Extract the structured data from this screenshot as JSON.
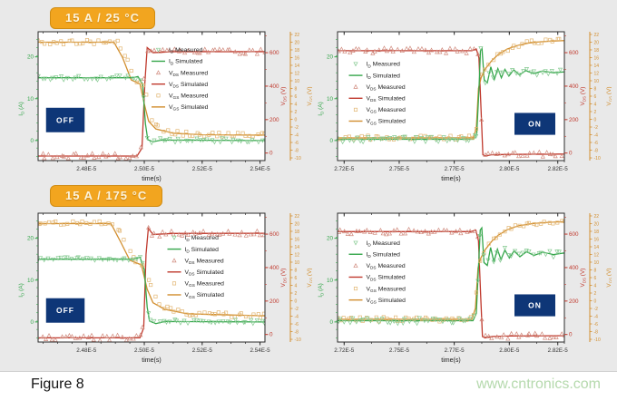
{
  "page": {
    "background": "#e9e9e9",
    "footer": {
      "label": "Figure 8",
      "watermark": "www.cntronics.com"
    }
  },
  "badges": [
    {
      "label": "15 A / 25 °C"
    },
    {
      "label": "15 A / 175 °C"
    }
  ],
  "colors": {
    "id_sim": "#35a64b",
    "id_meas": "#84c990",
    "vds_sim": "#c03a2e",
    "vds_meas": "#d08a7d",
    "vgs_sim": "#d28e2e",
    "vgs_meas": "#e2b571",
    "frame": "#2a2a2a",
    "tick_text": "#333333",
    "plot_bg": "#ffffff",
    "state_box_bg": "#0e3677",
    "state_box_text": "#ffffff"
  },
  "legend_items": [
    {
      "marker": "triangle-down",
      "color_key": "id_meas",
      "sym": "I",
      "sub": "D",
      "kind": "Measured"
    },
    {
      "marker": "line",
      "color_key": "id_sim",
      "sym": "I",
      "sub": "D",
      "kind": "Simulated"
    },
    {
      "marker": "triangle-up",
      "color_key": "vds_meas",
      "sym": "V",
      "sub": "DS",
      "kind": "Measured"
    },
    {
      "marker": "line",
      "color_key": "vds_sim",
      "sym": "V",
      "sub": "DS",
      "kind": "Simulated"
    },
    {
      "marker": "square",
      "color_key": "vgs_meas",
      "sym": "V",
      "sub": "GS",
      "kind": "Measured"
    },
    {
      "marker": "line",
      "color_key": "vgs_sim",
      "sym": "V",
      "sub": "GS",
      "kind": "Simulated"
    }
  ],
  "axes_common": {
    "id": {
      "label": {
        "main": "I",
        "sub": "D",
        "unit": "(A)"
      },
      "range": [
        -4.8,
        26
      ],
      "ticks": [
        0,
        10,
        20
      ],
      "minor_step": 2,
      "color_key": "id_sim"
    },
    "vds": {
      "label": {
        "main": "V",
        "sub": "DS",
        "unit": "(V)"
      },
      "range": [
        -45,
        725
      ],
      "ticks": [
        0,
        200,
        400,
        600
      ],
      "minor_step": 100,
      "color_key": "vds_sim"
    },
    "vgs": {
      "label": {
        "main": "V",
        "sub": "GS",
        "unit": "(V)"
      },
      "range": [
        -10.7,
        22.7
      ],
      "ticks": [
        22,
        20,
        18,
        16,
        14,
        12,
        10,
        8,
        6,
        4,
        2,
        0,
        -2,
        -4,
        -6,
        -8,
        -10
      ],
      "color_key": "vgs_sim"
    }
  },
  "chart_data": [
    {
      "id": "turn-off-25c",
      "type": "line",
      "temperature": "25 °C",
      "state_label": "OFF",
      "xlabel": "time(s)",
      "x_unit": "1e-5 s",
      "x_range": [
        2.4633,
        2.5417
      ],
      "x_ticks": [
        {
          "v": 2.48,
          "label": "2.48E-5"
        },
        {
          "v": 2.5,
          "label": "2.50E-5"
        },
        {
          "v": 2.52,
          "label": "2.52E-5"
        },
        {
          "v": 2.54,
          "label": "2.54E-5"
        }
      ],
      "x_minor_per_major": 3,
      "legend_pos": {
        "x": 0.5,
        "y": 0.14
      },
      "state_box": {
        "x": 0.035,
        "y": 0.59,
        "w": 0.17,
        "h": 0.19
      },
      "series": [
        {
          "key": "vds_sim",
          "axis": "vds",
          "points": [
            [
              2.4633,
              -18
            ],
            [
              2.4975,
              -18
            ],
            [
              2.4992,
              30
            ],
            [
              2.5002,
              420
            ],
            [
              2.501,
              630
            ],
            [
              2.503,
              600
            ],
            [
              2.51,
              606
            ],
            [
              2.5417,
              606
            ]
          ]
        },
        {
          "key": "vgs_sim",
          "axis": "vgs",
          "points": [
            [
              2.4633,
              20
            ],
            [
              2.4895,
              20
            ],
            [
              2.4925,
              16
            ],
            [
              2.4955,
              10.2
            ],
            [
              2.4985,
              9.2
            ],
            [
              2.5,
              4
            ],
            [
              2.5015,
              -0.5
            ],
            [
              2.504,
              -2.5
            ],
            [
              2.51,
              -3.6
            ],
            [
              2.52,
              -4.0
            ],
            [
              2.5417,
              -4.1
            ]
          ]
        },
        {
          "key": "id_sim",
          "axis": "id",
          "points": [
            [
              2.4633,
              15
            ],
            [
              2.496,
              15
            ],
            [
              2.4978,
              15.3
            ],
            [
              2.4994,
              13.5
            ],
            [
              2.5004,
              4
            ],
            [
              2.5012,
              0.2
            ],
            [
              2.503,
              -0.3
            ],
            [
              2.506,
              0.1
            ],
            [
              2.5417,
              0
            ]
          ]
        },
        {
          "key": "vds_meas",
          "axis": "vds",
          "marker": "triangle-up",
          "base": "vds_sim",
          "jitter": 16,
          "t_offset": -0.0004,
          "samples": 60
        },
        {
          "key": "vgs_meas",
          "axis": "vgs",
          "marker": "square",
          "base": "vgs_sim",
          "jitter": 0.6,
          "t_offset": 0.0013,
          "samples": 60
        },
        {
          "key": "id_meas",
          "axis": "id",
          "marker": "triangle-down",
          "base": "id_sim",
          "jitter": 0.55,
          "t_offset": 0,
          "samples": 60
        }
      ]
    },
    {
      "id": "turn-on-25c",
      "type": "line",
      "temperature": "25 °C",
      "state_label": "ON",
      "xlabel": "time(s)",
      "x_unit": "1e-5 s",
      "x_range": [
        2.722,
        2.825
      ],
      "x_ticks": [
        {
          "v": 2.725,
          "label": "2.72E-5"
        },
        {
          "v": 2.75,
          "label": "2.75E-5"
        },
        {
          "v": 2.775,
          "label": "2.77E-5"
        },
        {
          "v": 2.8,
          "label": "2.80E-5"
        },
        {
          "v": 2.822,
          "label": "2.82E-5"
        }
      ],
      "x_minor_per_major": 1,
      "legend_pos": {
        "x": 0.05,
        "y": 0.25
      },
      "state_box": {
        "x": 0.78,
        "y": 0.63,
        "w": 0.18,
        "h": 0.17
      },
      "series": [
        {
          "key": "vds_sim",
          "axis": "vds",
          "points": [
            [
              2.722,
              612
            ],
            [
              2.783,
              612
            ],
            [
              2.785,
              622
            ],
            [
              2.7862,
              570
            ],
            [
              2.7872,
              250
            ],
            [
              2.788,
              -10
            ],
            [
              2.7892,
              -18
            ],
            [
              2.792,
              -10
            ],
            [
              2.8,
              -8
            ],
            [
              2.825,
              -6
            ]
          ]
        },
        {
          "key": "vgs_sim",
          "axis": "vgs",
          "points": [
            [
              2.722,
              -4.8
            ],
            [
              2.7835,
              -4.8
            ],
            [
              2.785,
              -2.5
            ],
            [
              2.786,
              8
            ],
            [
              2.7872,
              10.8
            ],
            [
              2.789,
              13
            ],
            [
              2.792,
              15.2
            ],
            [
              2.795,
              16.8
            ],
            [
              2.799,
              18.2
            ],
            [
              2.804,
              19.2
            ],
            [
              2.809,
              19.8
            ],
            [
              2.814,
              20.1
            ],
            [
              2.82,
              20.3
            ],
            [
              2.825,
              20.4
            ]
          ]
        },
        {
          "key": "id_sim",
          "axis": "id",
          "points": [
            [
              2.722,
              0.3
            ],
            [
              2.7838,
              0.3
            ],
            [
              2.7852,
              1.5
            ],
            [
              2.7862,
              12
            ],
            [
              2.7869,
              21.5
            ],
            [
              2.7876,
              22
            ],
            [
              2.7886,
              14.5
            ],
            [
              2.79,
              13.8
            ],
            [
              2.7916,
              17.6
            ],
            [
              2.7932,
              14.6
            ],
            [
              2.7948,
              17.2
            ],
            [
              2.7964,
              15.0
            ],
            [
              2.798,
              17.0
            ],
            [
              2.7998,
              15.4
            ],
            [
              2.802,
              16.9
            ],
            [
              2.8045,
              15.7
            ],
            [
              2.8075,
              16.7
            ],
            [
              2.811,
              16.0
            ],
            [
              2.815,
              16.6
            ],
            [
              2.82,
              16.2
            ],
            [
              2.825,
              16.4
            ]
          ]
        },
        {
          "key": "vds_meas",
          "axis": "vds",
          "marker": "triangle-up",
          "base": "vds_sim",
          "jitter": 16,
          "t_offset": 0,
          "samples": 60
        },
        {
          "key": "vgs_meas",
          "axis": "vgs",
          "marker": "square",
          "base": "vgs_sim",
          "jitter": 0.6,
          "t_offset": 0,
          "samples": 60
        },
        {
          "key": "id_meas",
          "axis": "id",
          "marker": "triangle-down",
          "base": "id_sim",
          "jitter": 0.7,
          "t_offset": 0,
          "samples": 60
        }
      ]
    },
    {
      "id": "turn-off-175c",
      "type": "line",
      "temperature": "175 °C",
      "state_label": "OFF",
      "xlabel": "time(s)",
      "x_unit": "1e-5 s",
      "x_range": [
        2.4633,
        2.5417
      ],
      "x_ticks": [
        {
          "v": 2.48,
          "label": "2.48E-5"
        },
        {
          "v": 2.5,
          "label": "2.50E-5"
        },
        {
          "v": 2.52,
          "label": "2.52E-5"
        },
        {
          "v": 2.54,
          "label": "2.54E-5"
        }
      ],
      "x_minor_per_major": 3,
      "legend_pos": {
        "x": 0.57,
        "y": 0.19
      },
      "state_box": {
        "x": 0.035,
        "y": 0.66,
        "w": 0.17,
        "h": 0.19
      },
      "series": [
        {
          "key": "vds_sim",
          "axis": "vds",
          "points": [
            [
              2.4633,
              -20
            ],
            [
              2.4985,
              -20
            ],
            [
              2.4998,
              40
            ],
            [
              2.5006,
              480
            ],
            [
              2.5014,
              635
            ],
            [
              2.503,
              598
            ],
            [
              2.51,
              604
            ],
            [
              2.5417,
              605
            ]
          ]
        },
        {
          "key": "vgs_sim",
          "axis": "vgs",
          "points": [
            [
              2.4633,
              20
            ],
            [
              2.4885,
              20
            ],
            [
              2.492,
              15
            ],
            [
              2.495,
              10.5
            ],
            [
              2.499,
              9.3
            ],
            [
              2.501,
              3
            ],
            [
              2.503,
              -0.5
            ],
            [
              2.507,
              -2.2
            ],
            [
              2.515,
              -3.4
            ],
            [
              2.5417,
              -3.9
            ]
          ]
        },
        {
          "key": "id_sim",
          "axis": "id",
          "points": [
            [
              2.4633,
              15
            ],
            [
              2.4965,
              15
            ],
            [
              2.4985,
              15.5
            ],
            [
              2.5,
              12.5
            ],
            [
              2.501,
              3.5
            ],
            [
              2.5018,
              0.2
            ],
            [
              2.504,
              -0.4
            ],
            [
              2.507,
              0.1
            ],
            [
              2.5417,
              0
            ]
          ]
        },
        {
          "key": "vds_meas",
          "axis": "vds",
          "marker": "triangle-up",
          "base": "vds_sim",
          "jitter": 16,
          "t_offset": -0.0004,
          "samples": 60
        },
        {
          "key": "vgs_meas",
          "axis": "vgs",
          "marker": "square",
          "base": "vgs_sim",
          "jitter": 0.6,
          "t_offset": 0.0015,
          "samples": 60
        },
        {
          "key": "id_meas",
          "axis": "id",
          "marker": "triangle-down",
          "base": "id_sim",
          "jitter": 0.55,
          "t_offset": 0,
          "samples": 60
        }
      ]
    },
    {
      "id": "turn-on-175c",
      "type": "line",
      "temperature": "175 °C",
      "state_label": "ON",
      "xlabel": "time(s)",
      "x_unit": "1e-5 s",
      "x_range": [
        2.722,
        2.825
      ],
      "x_ticks": [
        {
          "v": 2.725,
          "label": "2.72E-5"
        },
        {
          "v": 2.75,
          "label": "2.75E-5"
        },
        {
          "v": 2.775,
          "label": "2.77E-5"
        },
        {
          "v": 2.8,
          "label": "2.80E-5"
        },
        {
          "v": 2.822,
          "label": "2.82E-5"
        }
      ],
      "x_minor_per_major": 1,
      "legend_pos": {
        "x": 0.05,
        "y": 0.23
      },
      "state_box": {
        "x": 0.78,
        "y": 0.63,
        "w": 0.18,
        "h": 0.17
      },
      "series": [
        {
          "key": "vds_sim",
          "axis": "vds",
          "points": [
            [
              2.722,
              615
            ],
            [
              2.7825,
              615
            ],
            [
              2.7848,
              624
            ],
            [
              2.786,
              560
            ],
            [
              2.787,
              230
            ],
            [
              2.7878,
              -12
            ],
            [
              2.789,
              -20
            ],
            [
              2.792,
              -12
            ],
            [
              2.8,
              -9
            ],
            [
              2.825,
              -7
            ]
          ]
        },
        {
          "key": "vgs_sim",
          "axis": "vgs",
          "points": [
            [
              2.722,
              -4.8
            ],
            [
              2.783,
              -4.8
            ],
            [
              2.7846,
              -2
            ],
            [
              2.7858,
              8.5
            ],
            [
              2.787,
              11
            ],
            [
              2.789,
              13.2
            ],
            [
              2.792,
              15.4
            ],
            [
              2.795,
              17.0
            ],
            [
              2.799,
              18.4
            ],
            [
              2.804,
              19.4
            ],
            [
              2.809,
              19.9
            ],
            [
              2.8145,
              20.2
            ],
            [
              2.82,
              20.4
            ],
            [
              2.825,
              20.5
            ]
          ]
        },
        {
          "key": "id_sim",
          "axis": "id",
          "points": [
            [
              2.722,
              0.3
            ],
            [
              2.7835,
              0.3
            ],
            [
              2.785,
              2
            ],
            [
              2.786,
              13
            ],
            [
              2.7868,
              22
            ],
            [
              2.7875,
              22.5
            ],
            [
              2.7885,
              14.2
            ],
            [
              2.79,
              13.5
            ],
            [
              2.7915,
              17.8
            ],
            [
              2.793,
              14.4
            ],
            [
              2.7946,
              17.4
            ],
            [
              2.7962,
              14.9
            ],
            [
              2.798,
              17.2
            ],
            [
              2.8,
              15.3
            ],
            [
              2.8022,
              17.0
            ],
            [
              2.8048,
              15.6
            ],
            [
              2.8078,
              16.8
            ],
            [
              2.8112,
              15.9
            ],
            [
              2.8152,
              16.7
            ],
            [
              2.82,
              16.1
            ],
            [
              2.825,
              16.5
            ]
          ]
        },
        {
          "key": "vds_meas",
          "axis": "vds",
          "marker": "triangle-up",
          "base": "vds_sim",
          "jitter": 16,
          "t_offset": 0,
          "samples": 60
        },
        {
          "key": "vgs_meas",
          "axis": "vgs",
          "marker": "square",
          "base": "vgs_sim",
          "jitter": 0.6,
          "t_offset": 0,
          "samples": 60
        },
        {
          "key": "id_meas",
          "axis": "id",
          "marker": "triangle-down",
          "base": "id_sim",
          "jitter": 0.7,
          "t_offset": 0,
          "samples": 60
        }
      ]
    }
  ]
}
